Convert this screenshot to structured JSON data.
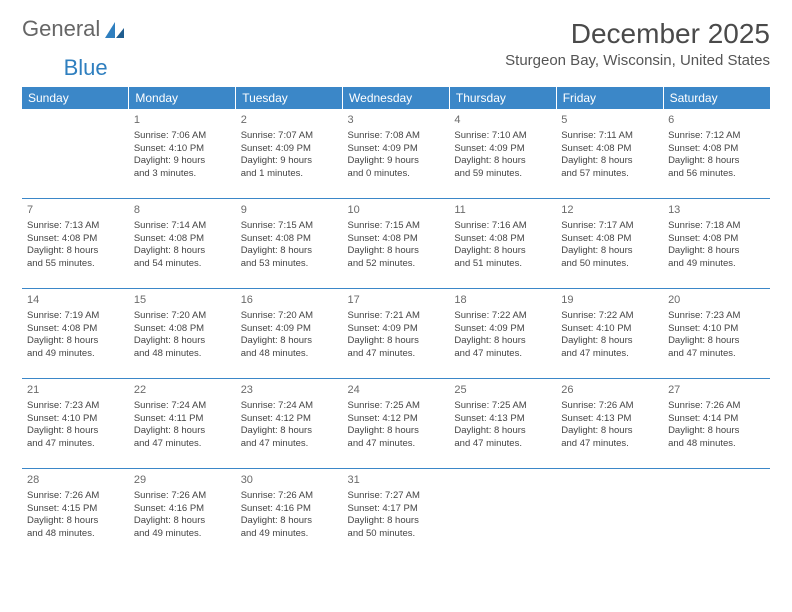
{
  "logo": {
    "part1": "General",
    "part2": "Blue"
  },
  "title": "December 2025",
  "location": "Sturgeon Bay, Wisconsin, United States",
  "colors": {
    "header_bg": "#3b87c8",
    "header_text": "#ffffff",
    "rule": "#3b87c8",
    "logo_blue": "#2f7fbf",
    "logo_gray": "#666666",
    "text": "#444444"
  },
  "daynames": [
    "Sunday",
    "Monday",
    "Tuesday",
    "Wednesday",
    "Thursday",
    "Friday",
    "Saturday"
  ],
  "weeks": [
    [
      null,
      {
        "n": "1",
        "sr": "Sunrise: 7:06 AM",
        "ss": "Sunset: 4:10 PM",
        "d1": "Daylight: 9 hours",
        "d2": "and 3 minutes."
      },
      {
        "n": "2",
        "sr": "Sunrise: 7:07 AM",
        "ss": "Sunset: 4:09 PM",
        "d1": "Daylight: 9 hours",
        "d2": "and 1 minutes."
      },
      {
        "n": "3",
        "sr": "Sunrise: 7:08 AM",
        "ss": "Sunset: 4:09 PM",
        "d1": "Daylight: 9 hours",
        "d2": "and 0 minutes."
      },
      {
        "n": "4",
        "sr": "Sunrise: 7:10 AM",
        "ss": "Sunset: 4:09 PM",
        "d1": "Daylight: 8 hours",
        "d2": "and 59 minutes."
      },
      {
        "n": "5",
        "sr": "Sunrise: 7:11 AM",
        "ss": "Sunset: 4:08 PM",
        "d1": "Daylight: 8 hours",
        "d2": "and 57 minutes."
      },
      {
        "n": "6",
        "sr": "Sunrise: 7:12 AM",
        "ss": "Sunset: 4:08 PM",
        "d1": "Daylight: 8 hours",
        "d2": "and 56 minutes."
      }
    ],
    [
      {
        "n": "7",
        "sr": "Sunrise: 7:13 AM",
        "ss": "Sunset: 4:08 PM",
        "d1": "Daylight: 8 hours",
        "d2": "and 55 minutes."
      },
      {
        "n": "8",
        "sr": "Sunrise: 7:14 AM",
        "ss": "Sunset: 4:08 PM",
        "d1": "Daylight: 8 hours",
        "d2": "and 54 minutes."
      },
      {
        "n": "9",
        "sr": "Sunrise: 7:15 AM",
        "ss": "Sunset: 4:08 PM",
        "d1": "Daylight: 8 hours",
        "d2": "and 53 minutes."
      },
      {
        "n": "10",
        "sr": "Sunrise: 7:15 AM",
        "ss": "Sunset: 4:08 PM",
        "d1": "Daylight: 8 hours",
        "d2": "and 52 minutes."
      },
      {
        "n": "11",
        "sr": "Sunrise: 7:16 AM",
        "ss": "Sunset: 4:08 PM",
        "d1": "Daylight: 8 hours",
        "d2": "and 51 minutes."
      },
      {
        "n": "12",
        "sr": "Sunrise: 7:17 AM",
        "ss": "Sunset: 4:08 PM",
        "d1": "Daylight: 8 hours",
        "d2": "and 50 minutes."
      },
      {
        "n": "13",
        "sr": "Sunrise: 7:18 AM",
        "ss": "Sunset: 4:08 PM",
        "d1": "Daylight: 8 hours",
        "d2": "and 49 minutes."
      }
    ],
    [
      {
        "n": "14",
        "sr": "Sunrise: 7:19 AM",
        "ss": "Sunset: 4:08 PM",
        "d1": "Daylight: 8 hours",
        "d2": "and 49 minutes."
      },
      {
        "n": "15",
        "sr": "Sunrise: 7:20 AM",
        "ss": "Sunset: 4:08 PM",
        "d1": "Daylight: 8 hours",
        "d2": "and 48 minutes."
      },
      {
        "n": "16",
        "sr": "Sunrise: 7:20 AM",
        "ss": "Sunset: 4:09 PM",
        "d1": "Daylight: 8 hours",
        "d2": "and 48 minutes."
      },
      {
        "n": "17",
        "sr": "Sunrise: 7:21 AM",
        "ss": "Sunset: 4:09 PM",
        "d1": "Daylight: 8 hours",
        "d2": "and 47 minutes."
      },
      {
        "n": "18",
        "sr": "Sunrise: 7:22 AM",
        "ss": "Sunset: 4:09 PM",
        "d1": "Daylight: 8 hours",
        "d2": "and 47 minutes."
      },
      {
        "n": "19",
        "sr": "Sunrise: 7:22 AM",
        "ss": "Sunset: 4:10 PM",
        "d1": "Daylight: 8 hours",
        "d2": "and 47 minutes."
      },
      {
        "n": "20",
        "sr": "Sunrise: 7:23 AM",
        "ss": "Sunset: 4:10 PM",
        "d1": "Daylight: 8 hours",
        "d2": "and 47 minutes."
      }
    ],
    [
      {
        "n": "21",
        "sr": "Sunrise: 7:23 AM",
        "ss": "Sunset: 4:10 PM",
        "d1": "Daylight: 8 hours",
        "d2": "and 47 minutes."
      },
      {
        "n": "22",
        "sr": "Sunrise: 7:24 AM",
        "ss": "Sunset: 4:11 PM",
        "d1": "Daylight: 8 hours",
        "d2": "and 47 minutes."
      },
      {
        "n": "23",
        "sr": "Sunrise: 7:24 AM",
        "ss": "Sunset: 4:12 PM",
        "d1": "Daylight: 8 hours",
        "d2": "and 47 minutes."
      },
      {
        "n": "24",
        "sr": "Sunrise: 7:25 AM",
        "ss": "Sunset: 4:12 PM",
        "d1": "Daylight: 8 hours",
        "d2": "and 47 minutes."
      },
      {
        "n": "25",
        "sr": "Sunrise: 7:25 AM",
        "ss": "Sunset: 4:13 PM",
        "d1": "Daylight: 8 hours",
        "d2": "and 47 minutes."
      },
      {
        "n": "26",
        "sr": "Sunrise: 7:26 AM",
        "ss": "Sunset: 4:13 PM",
        "d1": "Daylight: 8 hours",
        "d2": "and 47 minutes."
      },
      {
        "n": "27",
        "sr": "Sunrise: 7:26 AM",
        "ss": "Sunset: 4:14 PM",
        "d1": "Daylight: 8 hours",
        "d2": "and 48 minutes."
      }
    ],
    [
      {
        "n": "28",
        "sr": "Sunrise: 7:26 AM",
        "ss": "Sunset: 4:15 PM",
        "d1": "Daylight: 8 hours",
        "d2": "and 48 minutes."
      },
      {
        "n": "29",
        "sr": "Sunrise: 7:26 AM",
        "ss": "Sunset: 4:16 PM",
        "d1": "Daylight: 8 hours",
        "d2": "and 49 minutes."
      },
      {
        "n": "30",
        "sr": "Sunrise: 7:26 AM",
        "ss": "Sunset: 4:16 PM",
        "d1": "Daylight: 8 hours",
        "d2": "and 49 minutes."
      },
      {
        "n": "31",
        "sr": "Sunrise: 7:27 AM",
        "ss": "Sunset: 4:17 PM",
        "d1": "Daylight: 8 hours",
        "d2": "and 50 minutes."
      },
      null,
      null,
      null
    ]
  ]
}
